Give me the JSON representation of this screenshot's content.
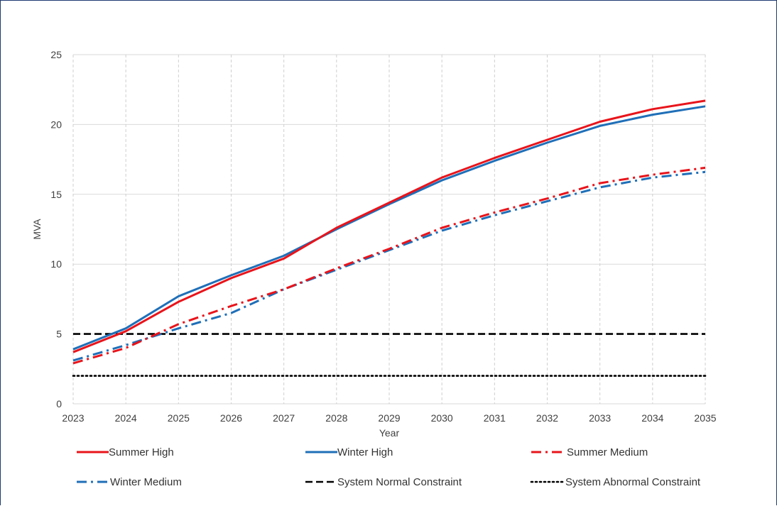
{
  "chart_data": {
    "type": "line",
    "title": "",
    "xlabel": "Year",
    "ylabel": "MVA",
    "x": [
      2023,
      2024,
      2025,
      2026,
      2027,
      2028,
      2029,
      2030,
      2031,
      2032,
      2033,
      2034,
      2035
    ],
    "xlim": [
      2023,
      2035
    ],
    "ylim": [
      0,
      25
    ],
    "yticks": [
      0,
      5,
      10,
      15,
      20,
      25
    ],
    "grid": {
      "horizontal": "solid",
      "vertical": "dashed"
    },
    "legend_position": "bottom",
    "series": [
      {
        "name": "Summer High",
        "color": "#e8141b",
        "style": "solid",
        "values": [
          3.7,
          5.2,
          7.3,
          9.0,
          10.4,
          12.6,
          14.4,
          16.2,
          17.6,
          18.9,
          20.2,
          21.1,
          21.7
        ]
      },
      {
        "name": "Winter High",
        "color": "#1f6fb8",
        "style": "solid",
        "values": [
          3.9,
          5.4,
          7.7,
          9.2,
          10.6,
          12.5,
          14.3,
          16.0,
          17.4,
          18.7,
          19.9,
          20.7,
          21.3
        ]
      },
      {
        "name": "Summer Medium",
        "color": "#e8141b",
        "style": "dashdot",
        "values": [
          2.9,
          4.0,
          5.7,
          7.0,
          8.2,
          9.7,
          11.1,
          12.6,
          13.7,
          14.7,
          15.8,
          16.4,
          16.9
        ]
      },
      {
        "name": "Winter Medium",
        "color": "#1f6fb8",
        "style": "dashdot",
        "values": [
          3.1,
          4.2,
          5.4,
          6.5,
          8.2,
          9.6,
          11.0,
          12.4,
          13.5,
          14.5,
          15.5,
          16.2,
          16.6
        ]
      },
      {
        "name": "System Normal Constraint",
        "color": "#000000",
        "style": "dashed",
        "values": [
          5,
          5,
          5,
          5,
          5,
          5,
          5,
          5,
          5,
          5,
          5,
          5,
          5
        ]
      },
      {
        "name": "System Abnormal Constraint",
        "color": "#000000",
        "style": "dotted",
        "values": [
          2,
          2,
          2,
          2,
          2,
          2,
          2,
          2,
          2,
          2,
          2,
          2,
          2
        ]
      }
    ]
  }
}
